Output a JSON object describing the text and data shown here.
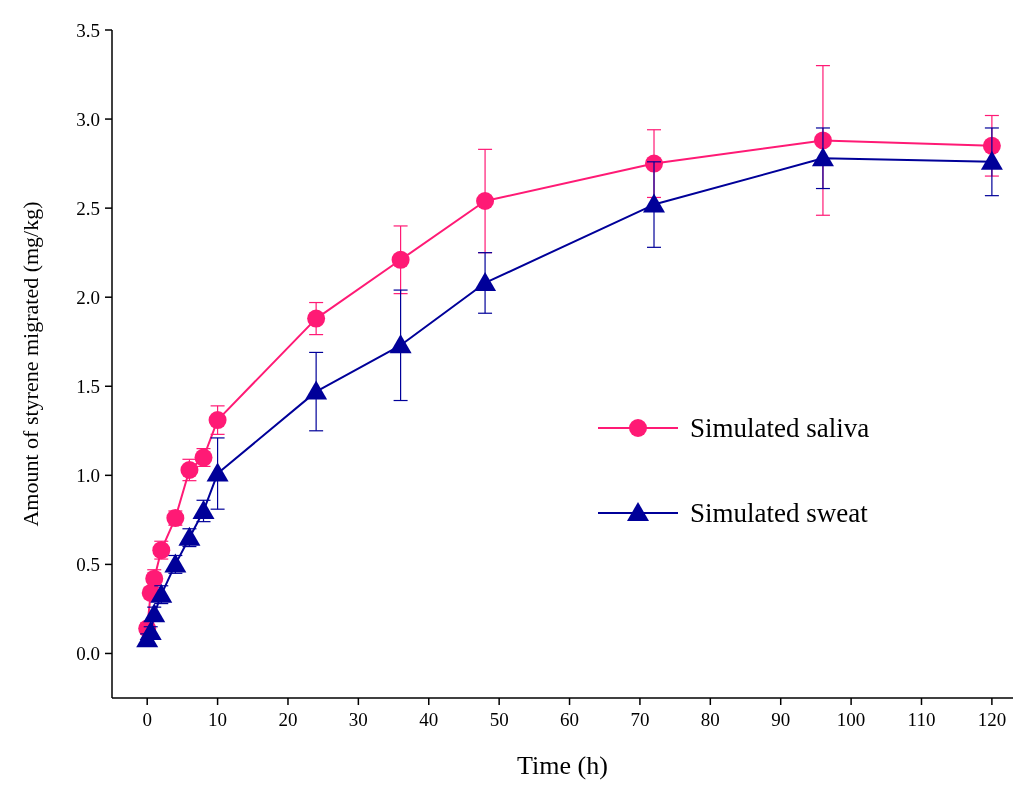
{
  "chart_data": {
    "type": "line",
    "xlabel": "Time (h)",
    "ylabel": "Amount of styrene migrated (mg/kg)",
    "xlim": [
      -5,
      123
    ],
    "xticks": [
      0,
      10,
      20,
      30,
      40,
      50,
      60,
      70,
      80,
      90,
      100,
      110,
      120
    ],
    "ylim": [
      -0.25,
      3.5
    ],
    "yticks": [
      {
        "value": 0,
        "label": "0.0"
      },
      0.5,
      {
        "value": 1,
        "label": "1.0"
      },
      1.5,
      {
        "value": 2,
        "label": "2.0"
      },
      2.5,
      {
        "value": 3,
        "label": "3.0"
      },
      3.5
    ],
    "legend": "right",
    "grid": false,
    "line_style": "solid",
    "x": [
      0,
      0.5,
      1,
      2,
      4,
      6,
      8,
      10,
      24,
      36,
      48,
      72,
      96,
      120
    ],
    "series": [
      {
        "name": "Simulated saliva",
        "color": "#ff1a75",
        "marker": "circle",
        "values": [
          0.14,
          0.34,
          0.42,
          0.58,
          0.76,
          1.03,
          1.1,
          1.31,
          1.88,
          2.21,
          2.54,
          2.75,
          2.88,
          2.85
        ],
        "errors": [
          0.03,
          0.03,
          0.05,
          0.05,
          0.04,
          0.06,
          0.05,
          0.08,
          0.09,
          0.19,
          0.29,
          0.19,
          0.42,
          0.17
        ]
      },
      {
        "name": "Simulated sweat",
        "color": "#000099",
        "marker": "triangle",
        "values": [
          0.08,
          0.12,
          0.22,
          0.33,
          0.5,
          0.65,
          0.8,
          1.01,
          1.47,
          1.73,
          2.08,
          2.52,
          2.78,
          2.76
        ],
        "errors": [
          0.03,
          0.03,
          0.04,
          0.05,
          0.05,
          0.05,
          0.06,
          0.2,
          0.22,
          0.31,
          0.17,
          0.24,
          0.17,
          0.19
        ]
      }
    ]
  }
}
